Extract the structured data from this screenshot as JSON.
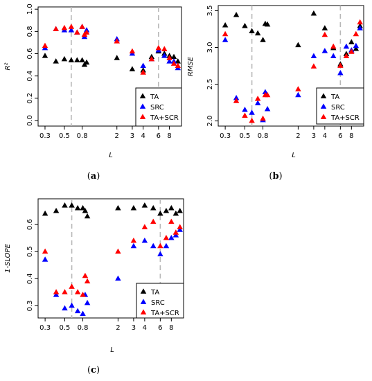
{
  "legend": {
    "entries": [
      {
        "label": "TA",
        "color": "#000000"
      },
      {
        "label": "SRC",
        "color": "#0000ff"
      },
      {
        "label": "TA+SCR",
        "color": "#ff0000"
      }
    ]
  },
  "chart_data": [
    {
      "type": "scatter",
      "panel": "a",
      "caption": "a",
      "xlabel": "L",
      "ylabel": "R²",
      "xscale": "log",
      "xlim": [
        0.25,
        11
      ],
      "ylim": [
        -0.05,
        1.02
      ],
      "xticks": [
        0.3,
        0.5,
        0.8,
        2,
        3,
        4,
        6,
        8
      ],
      "xticklabels": [
        "0.3",
        "0.5",
        "0.8",
        "2",
        "3",
        "4",
        "6",
        "8"
      ],
      "yticks": [
        0,
        0.2,
        0.4,
        0.6,
        0.8,
        1.0
      ],
      "yticklabels": [
        "0.0",
        "0.2",
        "0.4",
        "0.6",
        "0.8",
        "1.0"
      ],
      "vlines": [
        0.6,
        6
      ],
      "legend_position": "bottom-right",
      "grid": false,
      "series": [
        {
          "name": "TA",
          "color": "#000000",
          "x": [
            0.3,
            0.4,
            0.5,
            0.6,
            0.7,
            0.8,
            0.85,
            0.9,
            2,
            3,
            4,
            5,
            6,
            7,
            8,
            9,
            10
          ],
          "y": [
            0.58,
            0.53,
            0.55,
            0.54,
            0.54,
            0.54,
            0.5,
            0.52,
            0.56,
            0.46,
            0.45,
            0.57,
            0.62,
            0.6,
            0.58,
            0.57,
            0.53
          ]
        },
        {
          "name": "SRC",
          "color": "#0000ff",
          "x": [
            0.3,
            0.4,
            0.5,
            0.6,
            0.7,
            0.8,
            0.85,
            0.9,
            2,
            3,
            4,
            5,
            6,
            7,
            8,
            9,
            10
          ],
          "y": [
            0.65,
            0.82,
            0.81,
            0.81,
            0.79,
            0.84,
            0.75,
            0.81,
            0.73,
            0.6,
            0.49,
            0.55,
            0.63,
            0.58,
            0.53,
            0.53,
            0.47
          ]
        },
        {
          "name": "TA+SCR",
          "color": "#ff0000",
          "x": [
            0.3,
            0.4,
            0.5,
            0.6,
            0.7,
            0.8,
            0.85,
            0.9,
            2,
            3,
            4,
            5,
            6,
            7,
            8,
            9,
            10
          ],
          "y": [
            0.67,
            0.82,
            0.83,
            0.84,
            0.79,
            0.84,
            0.77,
            0.79,
            0.71,
            0.62,
            0.43,
            0.55,
            0.65,
            0.64,
            0.56,
            0.51,
            0.49
          ]
        }
      ]
    },
    {
      "type": "scatter",
      "panel": "b",
      "caption": "b",
      "xlabel": "L",
      "ylabel": "RMSE",
      "xscale": "log",
      "xlim": [
        0.25,
        11
      ],
      "ylim": [
        1.93,
        3.57
      ],
      "xticks": [
        0.3,
        0.5,
        0.8,
        2,
        3,
        4,
        6,
        8
      ],
      "xticklabels": [
        "0.3",
        "0.5",
        "0.8",
        "2",
        "3",
        "4",
        "6",
        "8"
      ],
      "yticks": [
        2.0,
        2.5,
        3.0,
        3.5
      ],
      "yticklabels": [
        "2.0",
        "2.5",
        "3.0",
        "3.5"
      ],
      "vlines": [
        0.6,
        6
      ],
      "legend_position": "top-right",
      "grid": false,
      "series": [
        {
          "name": "TA",
          "color": "#000000",
          "x": [
            0.3,
            0.4,
            0.5,
            0.6,
            0.7,
            0.8,
            0.85,
            0.9,
            2,
            3,
            4,
            5,
            6,
            7,
            8,
            9,
            10
          ],
          "y": [
            3.3,
            3.44,
            3.29,
            3.22,
            3.19,
            3.1,
            3.32,
            3.31,
            3.03,
            3.46,
            3.26,
            2.99,
            2.77,
            2.91,
            3.07,
            2.98,
            3.29
          ]
        },
        {
          "name": "SRC",
          "color": "#0000ff",
          "x": [
            0.3,
            0.4,
            0.5,
            0.6,
            0.7,
            0.8,
            0.85,
            0.9,
            2,
            3,
            4,
            5,
            6,
            7,
            8,
            9,
            10
          ],
          "y": [
            3.1,
            2.31,
            2.15,
            2.11,
            2.24,
            2.01,
            2.39,
            2.16,
            2.35,
            2.88,
            2.95,
            2.88,
            2.65,
            3.01,
            2.96,
            3.02,
            3.26
          ]
        },
        {
          "name": "TA+SCR",
          "color": "#ff0000",
          "x": [
            0.3,
            0.4,
            0.5,
            0.6,
            0.7,
            0.8,
            0.85,
            0.9,
            2,
            3,
            4,
            5,
            6,
            7,
            8,
            9,
            10
          ],
          "y": [
            3.18,
            2.27,
            2.07,
            2.0,
            2.3,
            2.03,
            2.35,
            2.35,
            2.43,
            2.74,
            3.17,
            3.01,
            2.75,
            2.88,
            2.94,
            3.18,
            3.34
          ]
        }
      ]
    },
    {
      "type": "scatter",
      "panel": "c",
      "caption": "c",
      "xlabel": "L",
      "ylabel": "1-SLOPE",
      "xscale": "log",
      "xlim": [
        0.25,
        11
      ],
      "ylim": [
        0.255,
        0.695
      ],
      "xticks": [
        0.3,
        0.5,
        0.8,
        2,
        3,
        4,
        6,
        8
      ],
      "xticklabels": [
        "0.3",
        "0.5",
        "0.8",
        "2",
        "3",
        "4",
        "6",
        "8"
      ],
      "yticks": [
        0.3,
        0.4,
        0.5,
        0.6
      ],
      "yticklabels": [
        "0.3",
        "0.4",
        "0.5",
        "0.6"
      ],
      "vlines": [
        0.6,
        6
      ],
      "legend_position": "bottom-right",
      "grid": false,
      "series": [
        {
          "name": "TA",
          "color": "#000000",
          "x": [
            0.3,
            0.4,
            0.5,
            0.6,
            0.7,
            0.8,
            0.85,
            0.9,
            2,
            3,
            4,
            5,
            6,
            7,
            8,
            9,
            10
          ],
          "y": [
            0.64,
            0.65,
            0.67,
            0.67,
            0.66,
            0.66,
            0.65,
            0.63,
            0.66,
            0.66,
            0.67,
            0.66,
            0.64,
            0.65,
            0.66,
            0.64,
            0.65
          ]
        },
        {
          "name": "SRC",
          "color": "#0000ff",
          "x": [
            0.3,
            0.4,
            0.5,
            0.6,
            0.7,
            0.8,
            0.85,
            0.9,
            2,
            3,
            4,
            5,
            6,
            7,
            8,
            9,
            10
          ],
          "y": [
            0.47,
            0.34,
            0.29,
            0.3,
            0.28,
            0.27,
            0.34,
            0.31,
            0.4,
            0.52,
            0.54,
            0.52,
            0.49,
            0.52,
            0.55,
            0.56,
            0.58
          ]
        },
        {
          "name": "TA+SCR",
          "color": "#ff0000",
          "x": [
            0.3,
            0.4,
            0.5,
            0.6,
            0.7,
            0.8,
            0.85,
            0.9,
            2,
            3,
            4,
            5,
            6,
            7,
            8,
            9,
            10
          ],
          "y": [
            0.5,
            0.35,
            0.35,
            0.37,
            0.35,
            0.34,
            0.41,
            0.39,
            0.5,
            0.54,
            0.59,
            0.61,
            0.52,
            0.55,
            0.61,
            0.57,
            0.59
          ]
        }
      ]
    }
  ]
}
